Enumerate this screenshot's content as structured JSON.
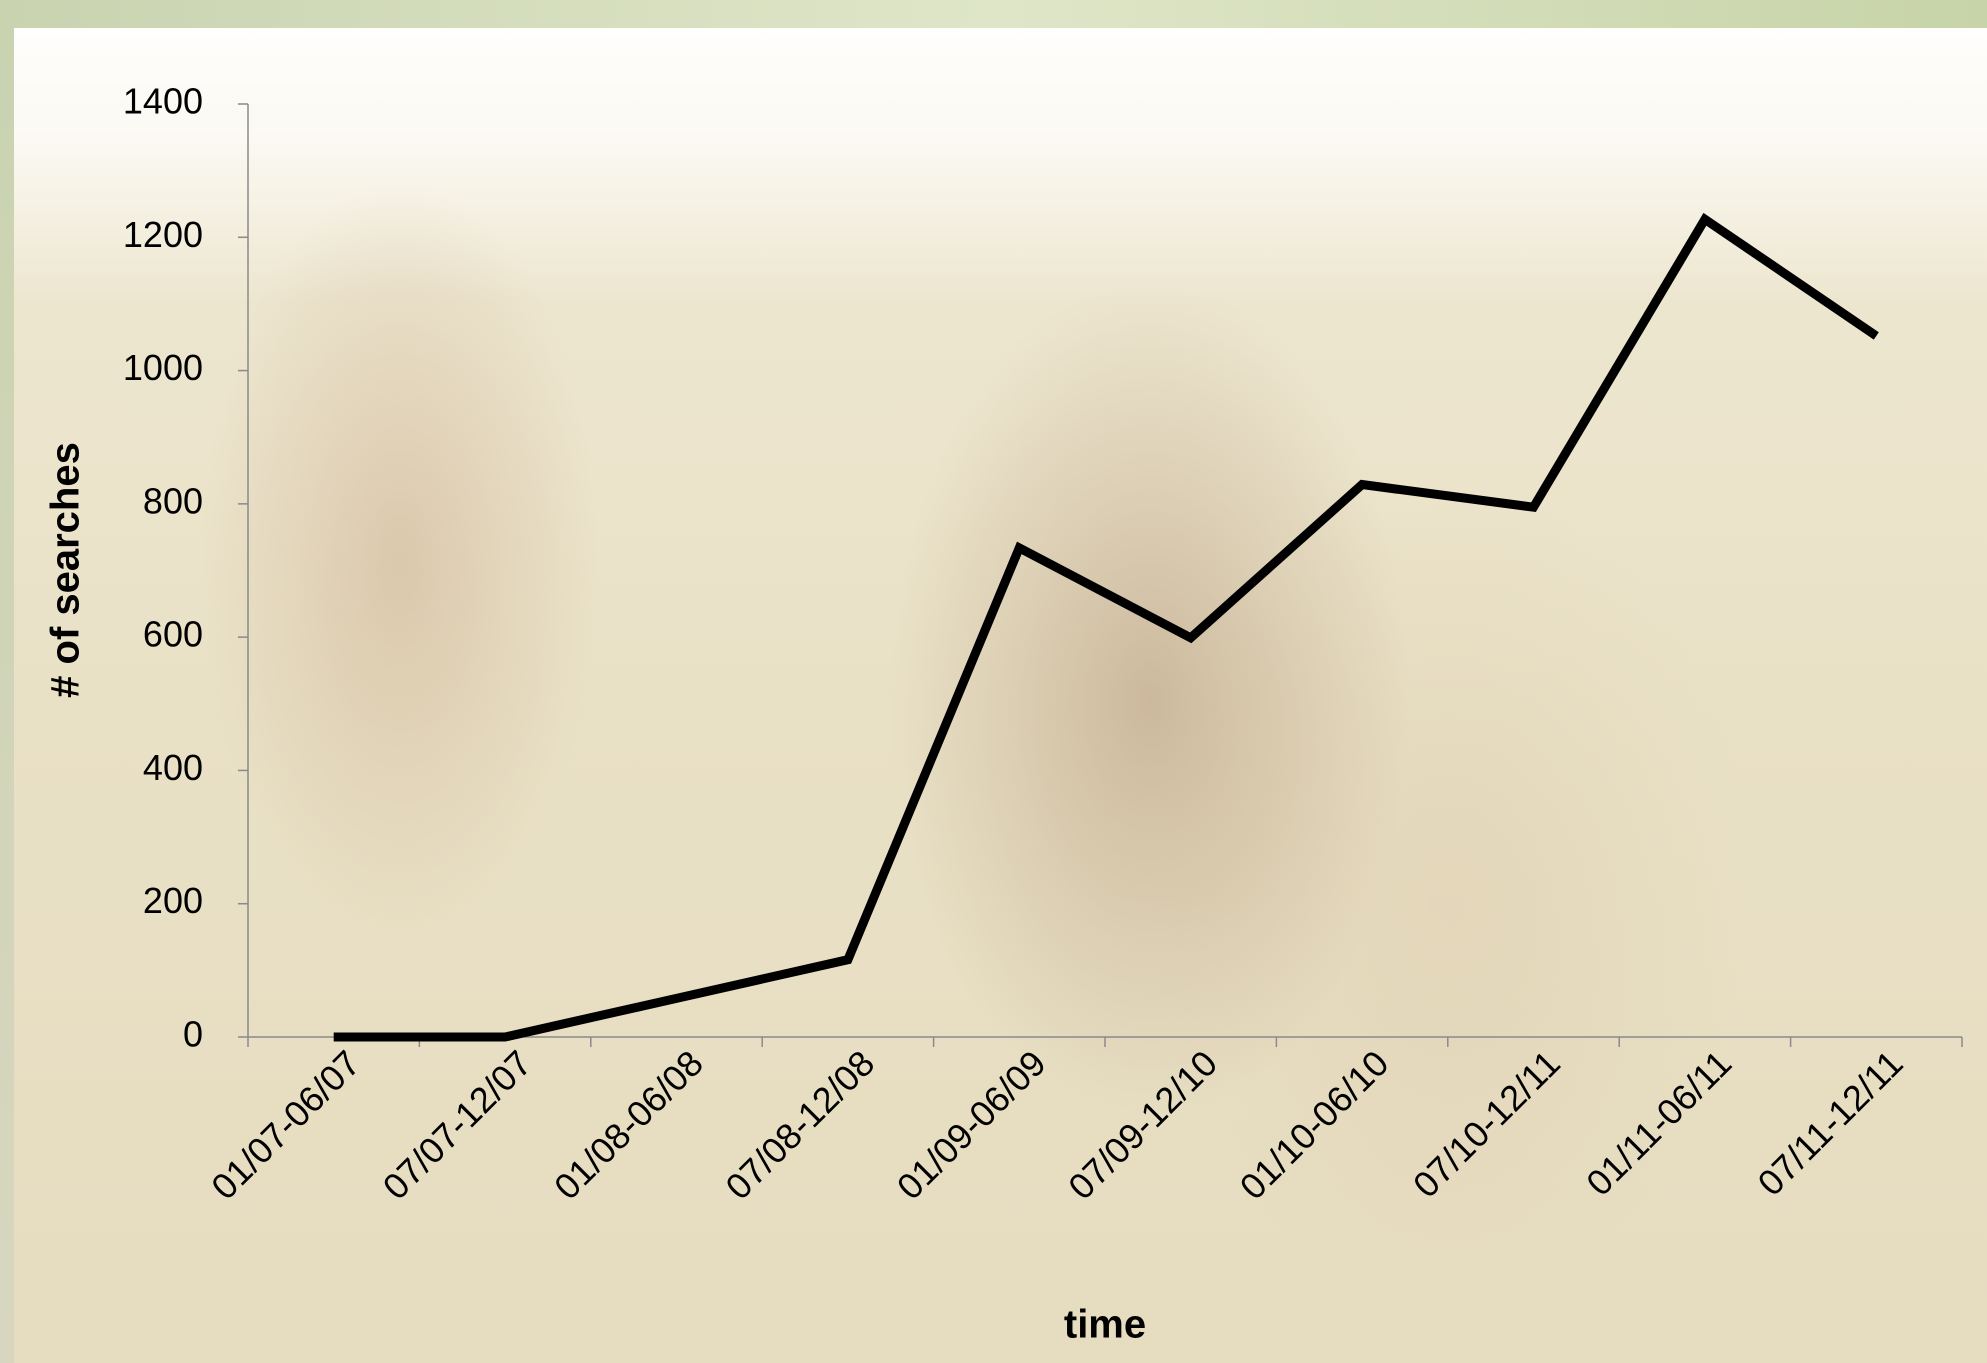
{
  "chart_data": {
    "type": "line",
    "x_label": "time",
    "y_label": "# of searches",
    "categories": [
      "01/07-06/07",
      "07/07-12/07",
      "01/08-06/08",
      "07/08-12/08",
      "01/09-06/09",
      "07/09-12/10",
      "01/10-06/10",
      "07/10-12/11",
      "01/11-06/11",
      "07/11-12/11"
    ],
    "values": [
      0,
      0,
      58,
      116,
      734,
      599,
      829,
      795,
      1227,
      1052
    ],
    "color": "#000000",
    "ylim": [
      0,
      1400
    ],
    "yticks": [
      0,
      200,
      400,
      600,
      800,
      1000,
      1200,
      1400
    ]
  }
}
